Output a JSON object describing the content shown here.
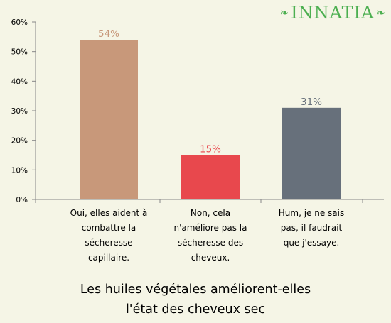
{
  "brand": {
    "name": "INNATIA",
    "color": "#4caf50",
    "icons": [
      "leaf-left-icon",
      "leaf-right-icon"
    ]
  },
  "colors": {
    "background": "#f5f5e6",
    "axis": "#888888",
    "tick_text": "#000000"
  },
  "chart_data": {
    "type": "bar",
    "title_lines": [
      "Les huiles végétales améliorent-elles",
      "l'état des cheveux sec"
    ],
    "xlabel": "",
    "ylabel": "",
    "ylim": [
      0,
      60
    ],
    "yticks": [
      0,
      10,
      20,
      30,
      40,
      50,
      60
    ],
    "ytick_labels": [
      "0%",
      "10%",
      "20%",
      "30%",
      "40%",
      "50%",
      "60%"
    ],
    "grid": false,
    "legend": "none",
    "categories": [
      [
        "Oui, elles aident à",
        "combattre la",
        "sécheresse",
        "capillaire."
      ],
      [
        "Non, cela",
        "n'améliore pas la",
        "sécheresse des",
        "cheveux."
      ],
      [
        "Hum, je ne sais",
        "pas, il faudrait",
        "que j'essaye."
      ]
    ],
    "values": [
      54,
      15,
      31
    ],
    "value_labels": [
      "54%",
      "15%",
      "31%"
    ],
    "bar_colors": [
      "#c8987a",
      "#e8484d",
      "#67707b"
    ],
    "label_colors": [
      "#c8987a",
      "#e8484d",
      "#67707b"
    ]
  }
}
